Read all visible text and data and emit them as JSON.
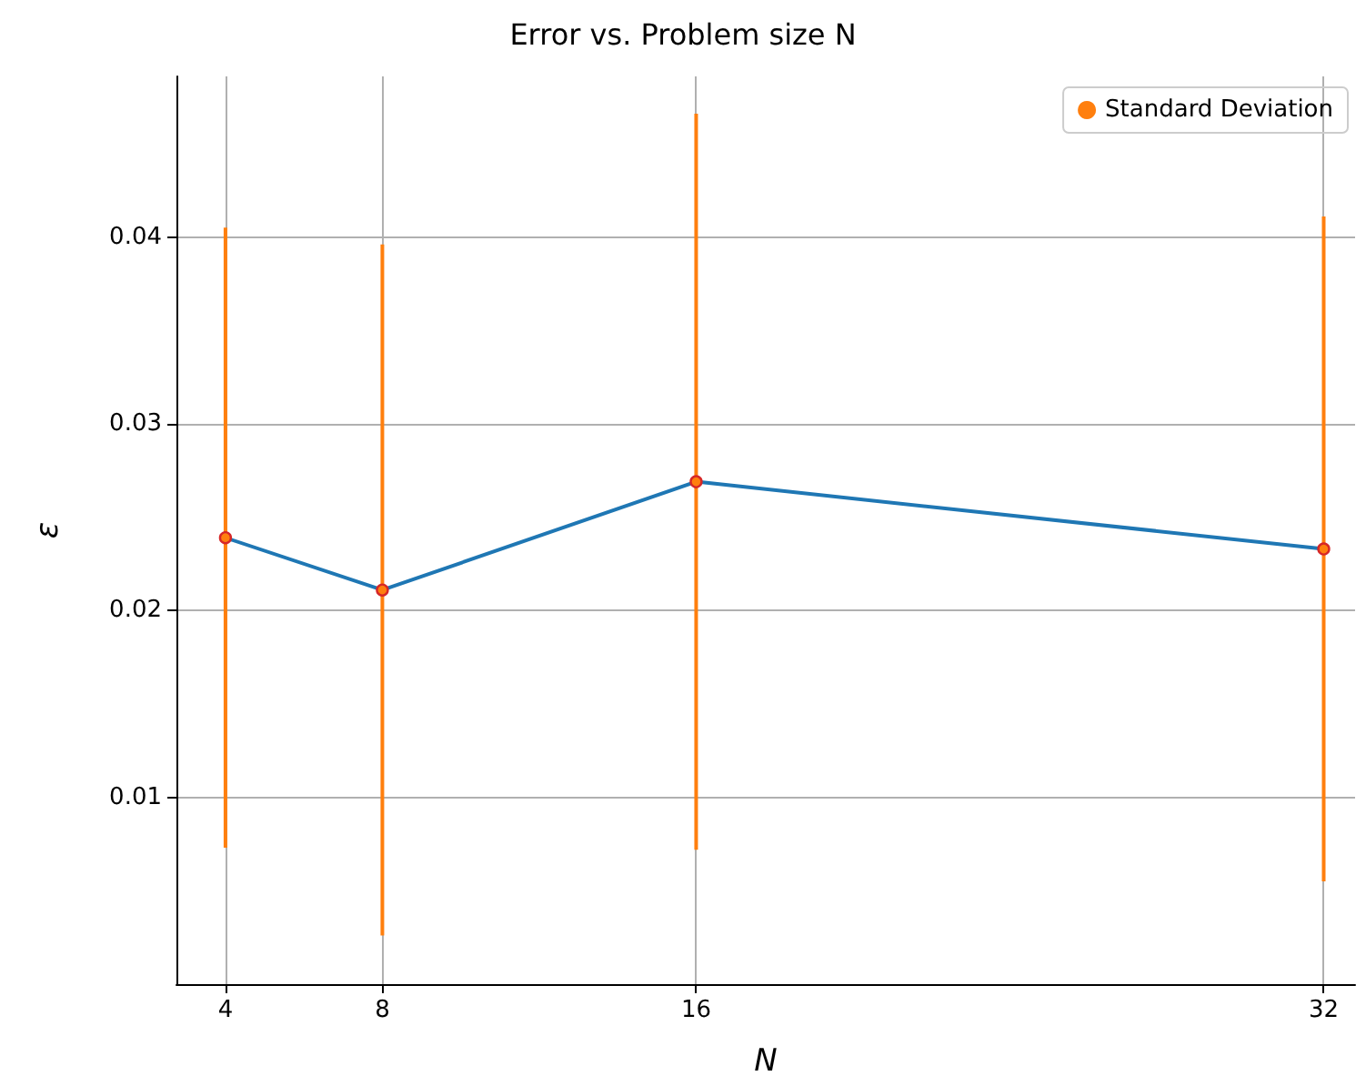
{
  "chart_data": {
    "type": "line",
    "title": "Error vs. Problem size N",
    "xlabel": "N",
    "ylabel": "ε",
    "x": [
      4,
      8,
      16,
      32
    ],
    "series": [
      {
        "color": "#1f77b4",
        "values": [
          0.0239,
          0.0211,
          0.0269,
          0.0233
        ],
        "marker": "none"
      },
      {
        "type": "scatter",
        "name": "Standard Deviation",
        "color": "#ff7f0e",
        "values": [
          0.0239,
          0.0211,
          0.0269,
          0.0233
        ],
        "errors": [
          0.0166,
          0.0185,
          0.0197,
          0.0178
        ],
        "marker": "circle"
      }
    ],
    "xlim": [
      2.75,
      32.8
    ],
    "ylim": [
      0,
      0.0486
    ],
    "xticks": [
      4,
      8,
      16,
      32
    ],
    "yticks": [
      0.01,
      0.02,
      0.03,
      0.04
    ],
    "grid": true,
    "legend": "top right"
  }
}
